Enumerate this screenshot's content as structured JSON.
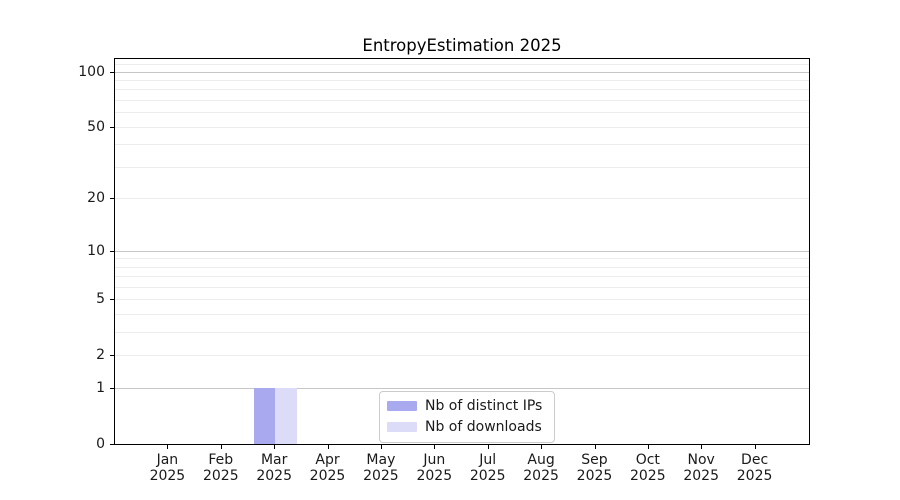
{
  "chart_data": {
    "type": "bar",
    "title": "EntropyEstimation 2025",
    "x": {
      "months": [
        "Jan",
        "Feb",
        "Mar",
        "Apr",
        "May",
        "Jun",
        "Jul",
        "Aug",
        "Sep",
        "Oct",
        "Nov",
        "Dec"
      ],
      "year": "2025"
    },
    "series": [
      {
        "name": "Nb of distinct IPs",
        "color": "#a9a9f0",
        "values": [
          0,
          0,
          1,
          0,
          0,
          0,
          0,
          0,
          0,
          0,
          0,
          0
        ]
      },
      {
        "name": "Nb of downloads",
        "color": "#dcdcf8",
        "values": [
          0,
          0,
          1,
          0,
          0,
          0,
          0,
          0,
          0,
          0,
          0,
          0
        ]
      }
    ],
    "y_axis": {
      "scale": "log1p",
      "tick_labels": [
        0,
        1,
        2,
        5,
        10,
        20,
        50,
        100
      ],
      "max": 117,
      "major_gridlines": [
        1,
        10,
        100
      ],
      "minor_gridlines": [
        2,
        3,
        4,
        5,
        6,
        7,
        8,
        9,
        20,
        30,
        40,
        50,
        60,
        70,
        80,
        90,
        110
      ]
    },
    "legend": {
      "position": "lower center"
    },
    "grid": true,
    "ylim": [
      0,
      117
    ]
  },
  "colors": {
    "axis_line": "#000000",
    "text": "#1a1a1a",
    "grid_major": "#c6c6c6",
    "grid_minor": "#ececec",
    "legend_border": "#cccccc",
    "background": "#ffffff"
  }
}
